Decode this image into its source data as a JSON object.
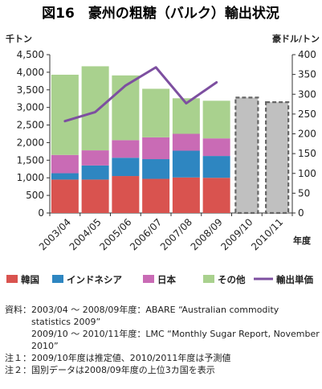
{
  "title": "図16　豪州の粗糖（バルク）輸出状況",
  "chart_data": {
    "type": "bar",
    "stacked": true,
    "categories": [
      "2003/04",
      "2004/05",
      "2005/06",
      "2006/07",
      "2007/08",
      "2008/09",
      "2009/10",
      "2010/11"
    ],
    "left_axis": {
      "unit": "千トン",
      "min": 0,
      "max": 4500,
      "step": 500,
      "tick_labels": [
        "0",
        "500",
        "1,000",
        "1,500",
        "2,000",
        "2,500",
        "3,000",
        "3,500",
        "4,000",
        "4,500"
      ]
    },
    "right_axis": {
      "unit": "豪ドル/トン",
      "min": 0,
      "max": 400,
      "step": 50,
      "tick_labels": [
        "0",
        "50",
        "100",
        "150",
        "200",
        "250",
        "300",
        "350",
        "400"
      ]
    },
    "xlabel": "年度",
    "series": [
      {
        "name": "韓国",
        "color": "#d9534f",
        "values": [
          950,
          950,
          1050,
          970,
          1010,
          1000,
          null,
          null
        ]
      },
      {
        "name": "インドネシア",
        "color": "#2e86c1",
        "values": [
          180,
          400,
          520,
          560,
          760,
          620,
          null,
          null
        ]
      },
      {
        "name": "日本",
        "color": "#c96bb5",
        "values": [
          520,
          430,
          500,
          620,
          480,
          500,
          null,
          null
        ]
      },
      {
        "name": "その他",
        "color": "#a9d18e",
        "values": [
          2280,
          2390,
          1840,
          1380,
          1010,
          1070,
          null,
          null
        ]
      }
    ],
    "totals_only": {
      "values": [
        null,
        null,
        null,
        null,
        null,
        null,
        3280,
        3150
      ],
      "color": "#c0c0c0",
      "border": "#666666"
    },
    "line": {
      "name": "輸出単価",
      "color": "#7d4fa0",
      "axis": "right",
      "values": [
        232,
        255,
        322,
        368,
        277,
        330,
        null,
        null
      ]
    },
    "legend_position": "bottom",
    "grid": false
  },
  "notes": [
    {
      "label": "資料：",
      "lines": [
        "2003/04 ～ 2008/09年度：ABARE “Australian commodity statistics 2009”",
        "2009/10 ～ 2010/11年度：LMC “Monthly Sugar Report, November 2010”"
      ]
    },
    {
      "label": "注１：",
      "lines": [
        "2009/10年度は推定値、2010/2011年度は予測値"
      ]
    },
    {
      "label": "注２：",
      "lines": [
        "国別データは2008/09年度の上位3カ国を表示"
      ]
    }
  ]
}
